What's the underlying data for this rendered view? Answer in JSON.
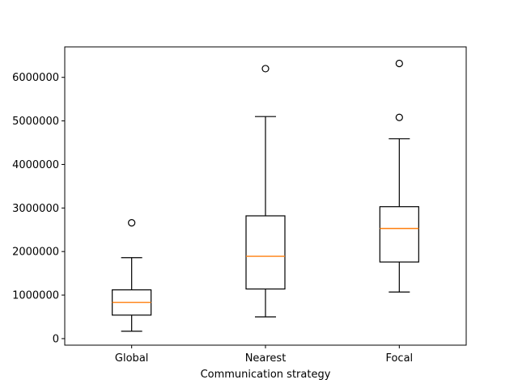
{
  "chart_data": {
    "type": "box",
    "xlabel": "Communication strategy",
    "ylabel": "",
    "title": "",
    "categories": [
      "Global",
      "Nearest",
      "Focal"
    ],
    "boxes": [
      {
        "category": "Global",
        "whisker_low": 170000,
        "q1": 540000,
        "median": 830000,
        "q3": 1120000,
        "whisker_high": 1860000,
        "outliers": [
          2660000
        ]
      },
      {
        "category": "Nearest",
        "whisker_low": 500000,
        "q1": 1140000,
        "median": 1890000,
        "q3": 2820000,
        "whisker_high": 5100000,
        "outliers": [
          6200000
        ]
      },
      {
        "category": "Focal",
        "whisker_low": 1070000,
        "q1": 1760000,
        "median": 2530000,
        "q3": 3030000,
        "whisker_high": 4590000,
        "outliers": [
          5080000,
          6320000
        ]
      }
    ],
    "yticks": [
      0,
      1000000,
      2000000,
      3000000,
      4000000,
      5000000,
      6000000
    ],
    "ytick_labels": [
      "0",
      "1000000",
      "2000000",
      "3000000",
      "4000000",
      "5000000",
      "6000000"
    ],
    "ylim": [
      -150000,
      6700000
    ],
    "grid": false,
    "colors": {
      "box": "#000000",
      "median": "#ff7f0e",
      "outlier_edge": "#000000",
      "background": "#ffffff"
    }
  }
}
